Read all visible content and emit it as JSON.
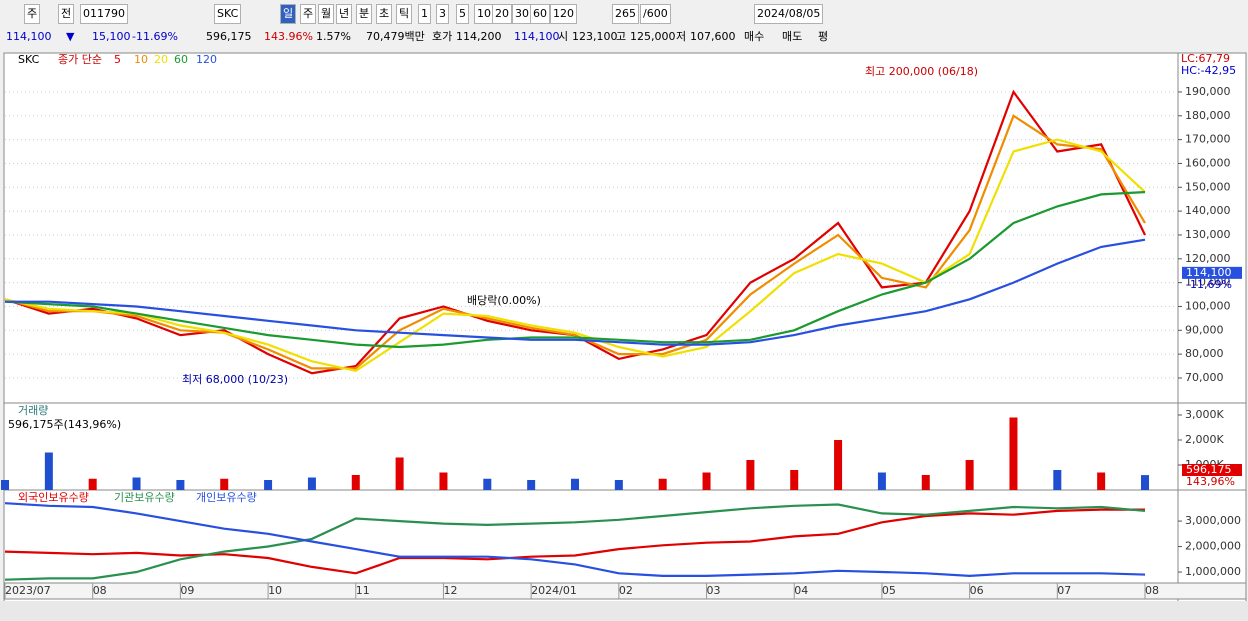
{
  "toolbar": {
    "row1": [
      "주",
      "전",
      "011790",
      "SKC",
      "일",
      "주",
      "월",
      "년",
      "분",
      "초",
      "틱",
      "1",
      "3",
      "5",
      "10",
      "20",
      "30",
      "60",
      "120",
      "265",
      "/600",
      "2024/08/05"
    ],
    "row2": [
      "114,100",
      "▼",
      "15,100",
      "-11.69%",
      "596,175",
      "143.96%",
      "1.57%",
      "70,479백만",
      "호가",
      "114,200",
      "114,100",
      "시",
      "123,100",
      "고",
      "125,000",
      "저",
      "107,600",
      "매수",
      "매도",
      "평"
    ]
  },
  "chart_data": [
    {
      "type": "line",
      "name": "SKC",
      "legend_title": "종가 단순",
      "categories": [
        "2023/07",
        null,
        "08",
        null,
        "09",
        null,
        "10",
        null,
        "11",
        null,
        "12",
        null,
        "2024/01",
        null,
        "02",
        null,
        "03",
        null,
        "04",
        null,
        "05",
        null,
        "06",
        null,
        "07",
        null,
        "08"
      ],
      "series": [
        {
          "name": "5",
          "color": "#e00000",
          "values": [
            103000,
            97000,
            99000,
            95000,
            88000,
            90000,
            80000,
            72000,
            75000,
            95000,
            100000,
            94000,
            90000,
            88000,
            78000,
            82000,
            88000,
            110000,
            120000,
            135000,
            108000,
            110000,
            140000,
            190000,
            165000,
            168000,
            130000
          ]
        },
        {
          "name": "10",
          "color": "#f08c00",
          "values": [
            103000,
            98000,
            98000,
            96000,
            90000,
            89000,
            82000,
            74000,
            74000,
            90000,
            99000,
            95000,
            91000,
            88000,
            80000,
            80000,
            86000,
            105000,
            118000,
            130000,
            112000,
            108000,
            132000,
            180000,
            168000,
            166000,
            135000
          ]
        },
        {
          "name": "20",
          "color": "#f0e000",
          "values": [
            103000,
            99000,
            98000,
            97000,
            92000,
            89000,
            84000,
            77000,
            73000,
            85000,
            97000,
            96000,
            92000,
            89000,
            83000,
            79000,
            83000,
            98000,
            114000,
            122000,
            118000,
            110000,
            122000,
            165000,
            170000,
            165000,
            148000
          ]
        },
        {
          "name": "60",
          "color": "#1a9a30",
          "values": [
            102000,
            101000,
            100000,
            97000,
            94000,
            91000,
            88000,
            86000,
            84000,
            83000,
            84000,
            86000,
            87000,
            87000,
            86000,
            85000,
            85000,
            86000,
            90000,
            98000,
            105000,
            110000,
            120000,
            135000,
            142000,
            147000,
            148000
          ]
        },
        {
          "name": "120",
          "color": "#2850e0",
          "values": [
            102000,
            102000,
            101000,
            100000,
            98000,
            96000,
            94000,
            92000,
            90000,
            89000,
            88000,
            87000,
            86000,
            86000,
            85000,
            84000,
            84000,
            85000,
            88000,
            92000,
            95000,
            98000,
            103000,
            110000,
            118000,
            125000,
            128000
          ]
        }
      ],
      "ylim": [
        59500,
        205500
      ],
      "yticks": [
        {
          "value": 70000,
          "label": "70,000"
        },
        {
          "value": 80000,
          "label": "80,000"
        },
        {
          "value": 90000,
          "label": "90,000"
        },
        {
          "value": 100000,
          "label": "100,000"
        },
        {
          "value": 110000,
          "label": "110,000"
        },
        {
          "value": 120000,
          "label": "120,000"
        },
        {
          "value": 130000,
          "label": "130,000"
        },
        {
          "value": 140000,
          "label": "140,000"
        },
        {
          "value": 150000,
          "label": "150,000"
        },
        {
          "value": 160000,
          "label": "160,000"
        },
        {
          "value": 170000,
          "label": "170,000"
        },
        {
          "value": 180000,
          "label": "180,000"
        },
        {
          "value": 190000,
          "label": "190,000"
        }
      ],
      "grid": true,
      "annotations": [
        "최고 200,000 (06/18)",
        "최저 68,000 (10/23)",
        "배당락(0.00%)"
      ],
      "axis_notes": [
        "LC:67,79",
        "HC:-42,95"
      ],
      "last_price": {
        "value": 114100,
        "label": "114,100"
      },
      "last_change": "-11,69%"
    },
    {
      "type": "bar",
      "title": "거래량",
      "header": "596,175주(143,96%)",
      "values": [
        400000,
        1500000,
        450000,
        500000,
        400000,
        450000,
        400000,
        500000,
        600000,
        1300000,
        700000,
        450000,
        400000,
        450000,
        400000,
        450000,
        700000,
        1200000,
        800000,
        2000000,
        700000,
        600000,
        1200000,
        2900000,
        800000,
        700000,
        596175
      ],
      "colors": [
        "#1f4fd0",
        "#1f4fd0",
        "#e00000",
        "#1f4fd0",
        "#1f4fd0",
        "#e00000",
        "#1f4fd0",
        "#1f4fd0",
        "#e00000",
        "#e00000",
        "#e00000",
        "#1f4fd0",
        "#1f4fd0",
        "#1f4fd0",
        "#1f4fd0",
        "#e00000",
        "#e00000",
        "#e00000",
        "#e00000",
        "#e00000",
        "#1f4fd0",
        "#e00000",
        "#e00000",
        "#e00000",
        "#1f4fd0",
        "#e00000",
        "#1f4fd0"
      ],
      "ylim": [
        0,
        3400000
      ],
      "yticks": [
        {
          "value": 1000000,
          "label": "1,000K"
        },
        {
          "value": 2000000,
          "label": "2,000K"
        },
        {
          "value": 3000000,
          "label": "3,000K"
        }
      ],
      "last_label": "596,175",
      "last_change": "143,96%"
    },
    {
      "type": "line",
      "series": [
        {
          "name": "외국인보유수량",
          "color": "#e00000",
          "values": [
            1800000,
            1750000,
            1700000,
            1750000,
            1650000,
            1700000,
            1550000,
            1200000,
            950000,
            1550000,
            1550000,
            1500000,
            1600000,
            1650000,
            1900000,
            2050000,
            2150000,
            2200000,
            2400000,
            2500000,
            2950000,
            3200000,
            3300000,
            3250000,
            3400000,
            3450000,
            3450000
          ]
        },
        {
          "name": "기관보유수량",
          "color": "#2a9050",
          "values": [
            700000,
            750000,
            750000,
            1000000,
            1500000,
            1800000,
            2000000,
            2300000,
            3100000,
            3000000,
            2900000,
            2850000,
            2900000,
            2950000,
            3050000,
            3200000,
            3350000,
            3500000,
            3600000,
            3650000,
            3300000,
            3250000,
            3400000,
            3550000,
            3500000,
            3550000,
            3400000
          ]
        },
        {
          "name": "개인보유수량",
          "color": "#2850e0",
          "values": [
            3700000,
            3600000,
            3550000,
            3300000,
            3000000,
            2700000,
            2500000,
            2200000,
            1900000,
            1600000,
            1600000,
            1600000,
            1500000,
            1300000,
            950000,
            850000,
            850000,
            900000,
            950000,
            1050000,
            1000000,
            950000,
            850000,
            950000,
            950000,
            950000,
            900000
          ]
        }
      ],
      "ylim": [
        570000,
        4140000
      ],
      "yticks": [
        {
          "value": 1000000,
          "label": "1,000,000"
        },
        {
          "value": 2000000,
          "label": "2,000,000"
        },
        {
          "value": 3000000,
          "label": "3,000,000"
        }
      ]
    }
  ]
}
